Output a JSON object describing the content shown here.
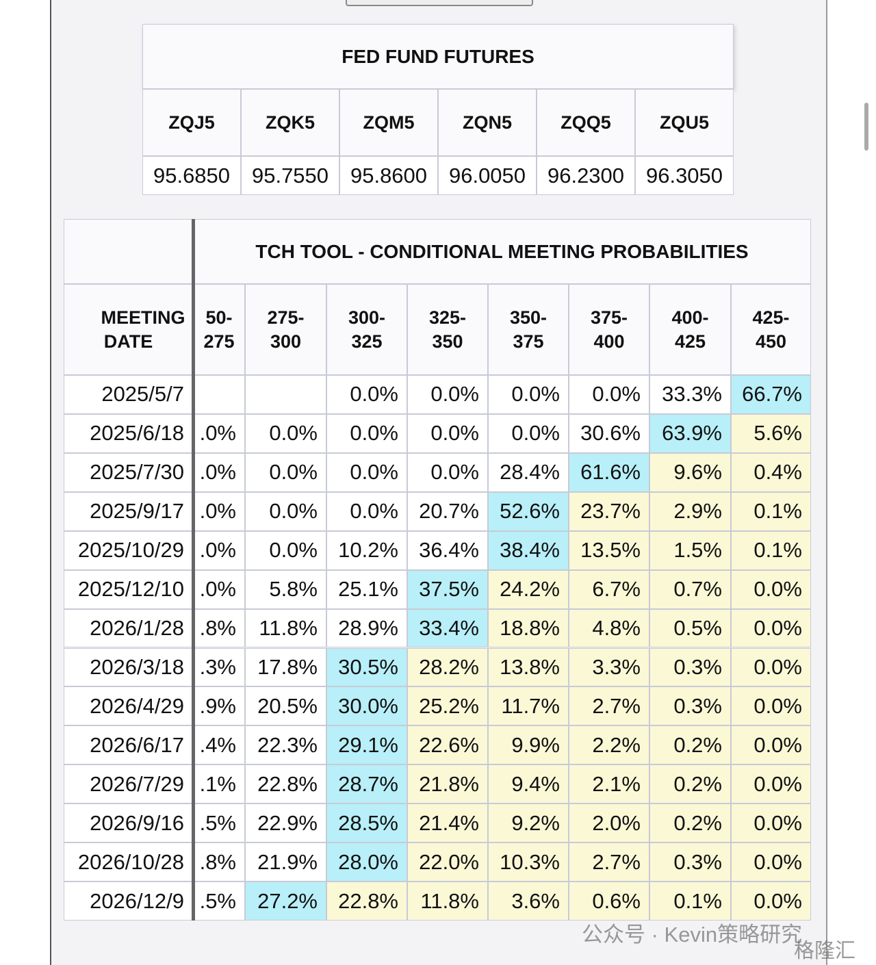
{
  "futures": {
    "title": "FED FUND FUTURES",
    "headers": [
      "ZQJ5",
      "ZQK5",
      "ZQM5",
      "ZQN5",
      "ZQQ5",
      "ZQU5"
    ],
    "values": [
      "95.6850",
      "95.7550",
      "95.8600",
      "96.0050",
      "96.2300",
      "96.3050"
    ]
  },
  "probabilities": {
    "title": "TCH TOOL - CONDITIONAL MEETING PROBABILITIES",
    "headers": [
      "MEETING DATE",
      "50-275",
      "275-300",
      "300-325",
      "325-350",
      "350-375",
      "375-400",
      "400-425",
      "425-450"
    ],
    "rows": [
      [
        "2025/5/7",
        null,
        null,
        "0.0%",
        "0.0%",
        "0.0%",
        "0.0%",
        "33.3%",
        "66.7%"
      ],
      [
        "2025/6/18",
        ".0%",
        "0.0%",
        "0.0%",
        "0.0%",
        "0.0%",
        "30.6%",
        "63.9%",
        "5.6%"
      ],
      [
        "2025/7/30",
        ".0%",
        "0.0%",
        "0.0%",
        "0.0%",
        "28.4%",
        "61.6%",
        "9.6%",
        "0.4%"
      ],
      [
        "2025/9/17",
        ".0%",
        "0.0%",
        "0.0%",
        "20.7%",
        "52.6%",
        "23.7%",
        "2.9%",
        "0.1%"
      ],
      [
        "2025/10/29",
        ".0%",
        "0.0%",
        "10.2%",
        "36.4%",
        "38.4%",
        "13.5%",
        "1.5%",
        "0.1%"
      ],
      [
        "2025/12/10",
        ".0%",
        "5.8%",
        "25.1%",
        "37.5%",
        "24.2%",
        "6.7%",
        "0.7%",
        "0.0%"
      ],
      [
        "2026/1/28",
        ".8%",
        "11.8%",
        "28.9%",
        "33.4%",
        "18.8%",
        "4.8%",
        "0.5%",
        "0.0%"
      ],
      [
        "2026/3/18",
        ".3%",
        "17.8%",
        "30.5%",
        "28.2%",
        "13.8%",
        "3.3%",
        "0.3%",
        "0.0%"
      ],
      [
        "2026/4/29",
        ".9%",
        "20.5%",
        "30.0%",
        "25.2%",
        "11.7%",
        "2.7%",
        "0.3%",
        "0.0%"
      ],
      [
        "2026/6/17",
        ".4%",
        "22.3%",
        "29.1%",
        "22.6%",
        "9.9%",
        "2.2%",
        "0.2%",
        "0.0%"
      ],
      [
        "2026/7/29",
        ".1%",
        "22.8%",
        "28.7%",
        "21.8%",
        "9.4%",
        "2.1%",
        "0.2%",
        "0.0%"
      ],
      [
        "2026/9/16",
        ".5%",
        "22.9%",
        "28.5%",
        "21.4%",
        "9.2%",
        "2.0%",
        "0.2%",
        "0.0%"
      ],
      [
        "2026/10/28",
        ".8%",
        "21.9%",
        "28.0%",
        "22.0%",
        "10.3%",
        "2.7%",
        "0.3%",
        "0.0%"
      ],
      [
        "2026/12/9",
        ".5%",
        "27.2%",
        "22.8%",
        "11.8%",
        "3.6%",
        "0.6%",
        "0.1%",
        "0.0%"
      ]
    ]
  },
  "watermark": {
    "account": "公众号 · Kevin策略研究",
    "logo": "格隆汇"
  }
}
